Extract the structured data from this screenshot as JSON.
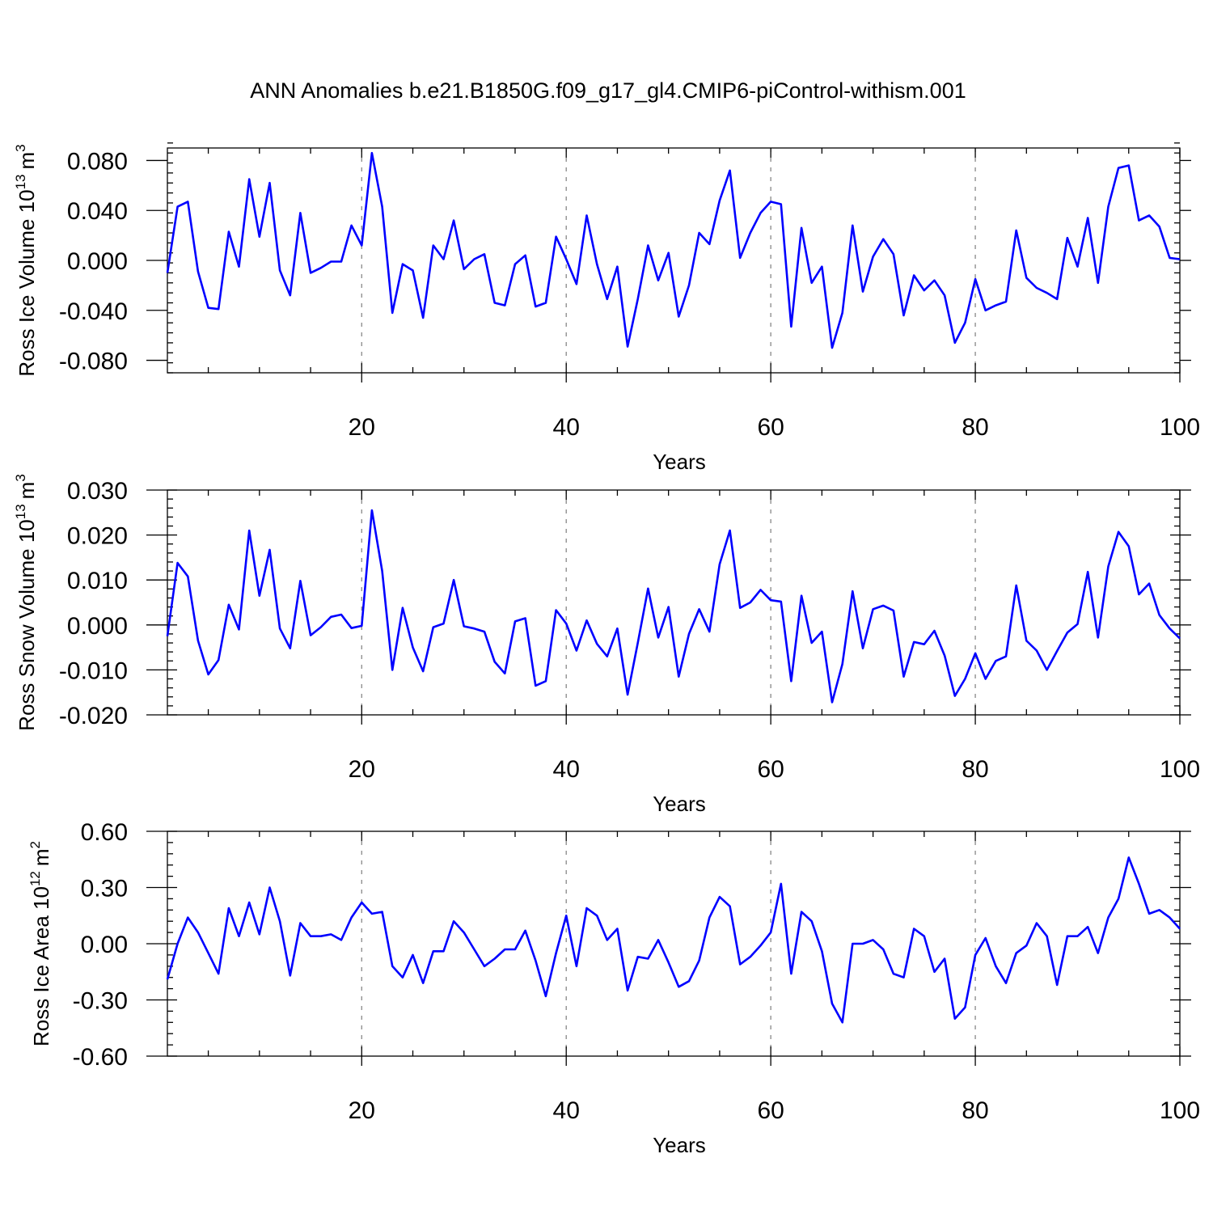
{
  "title": "ANN Anomalies b.e21.B1850G.f09_g17_gl4.CMIP6-piControl-withism.001",
  "line_color": "#0000ff",
  "chart_data": [
    {
      "type": "line",
      "title": "",
      "xlabel": "Years",
      "ylabel_main": "Ross Ice Volume 10",
      "ylabel_exp": "13",
      "ylabel_unit": "m",
      "ylabel_unit_exp": "3",
      "xlim": [
        1,
        100
      ],
      "ylim": [
        -0.09,
        0.09
      ],
      "xticks": [
        20,
        40,
        60,
        80,
        100
      ],
      "xtick_labels": [
        "20",
        "40",
        "60",
        "80",
        "100"
      ],
      "yticks": [
        0.08,
        0.04,
        0.0,
        -0.04,
        -0.08
      ],
      "ytick_labels": [
        "0.080",
        "0.040",
        "0.000",
        "-0.040",
        "-0.080"
      ],
      "grid": "dashed vertical at 20, 40, 60, 80",
      "series": [
        {
          "x": [
            1,
            2,
            3,
            4,
            5,
            6,
            7,
            8,
            9,
            10,
            11,
            12,
            13,
            14,
            15,
            16,
            17,
            18,
            19,
            20,
            21,
            22,
            23,
            24,
            25,
            26,
            27,
            28,
            29,
            30,
            31,
            32,
            33,
            34,
            35,
            36,
            37,
            38,
            39,
            40,
            41,
            42,
            43,
            44,
            45,
            46,
            47,
            48,
            49,
            50,
            51,
            52,
            53,
            54,
            55,
            56,
            57,
            58,
            59,
            60,
            61,
            62,
            63,
            64,
            65,
            66,
            67,
            68,
            69,
            70,
            71,
            72,
            73,
            74,
            75,
            76,
            77,
            78,
            79,
            80,
            81,
            82,
            83,
            84,
            85,
            86,
            87,
            88,
            89,
            90,
            91,
            92,
            93,
            94,
            95,
            96,
            97,
            98,
            99,
            100
          ],
          "y": [
            -0.01,
            0.043,
            0.047,
            -0.009,
            -0.038,
            -0.039,
            0.023,
            -0.005,
            0.065,
            0.019,
            0.062,
            -0.008,
            -0.028,
            0.038,
            -0.01,
            -0.006,
            -0.001,
            -0.001,
            0.028,
            0.012,
            0.086,
            0.043,
            -0.042,
            -0.003,
            -0.008,
            -0.046,
            0.012,
            0.001,
            0.032,
            -0.007,
            0.001,
            0.005,
            -0.034,
            -0.036,
            -0.003,
            0.004,
            -0.037,
            -0.034,
            0.019,
            0.001,
            -0.019,
            0.036,
            -0.003,
            -0.031,
            -0.005,
            -0.069,
            -0.031,
            0.012,
            -0.016,
            0.006,
            -0.045,
            -0.02,
            0.022,
            0.013,
            0.048,
            0.072,
            0.002,
            0.022,
            0.038,
            0.047,
            0.045,
            -0.053,
            0.026,
            -0.018,
            -0.005,
            -0.07,
            -0.042,
            0.028,
            -0.025,
            0.003,
            0.017,
            0.005,
            -0.044,
            -0.012,
            -0.024,
            -0.016,
            -0.028,
            -0.066,
            -0.05,
            -0.015,
            -0.04,
            -0.036,
            -0.033,
            0.024,
            -0.014,
            -0.022,
            -0.026,
            -0.031,
            0.018,
            -0.005,
            0.034,
            -0.018,
            0.043,
            0.074,
            0.076,
            0.032,
            0.036,
            0.027,
            0.002,
            0.001
          ]
        }
      ]
    },
    {
      "type": "line",
      "title": "",
      "xlabel": "Years",
      "ylabel_main": "Ross Snow Volume 10",
      "ylabel_exp": "13",
      "ylabel_unit": "m",
      "ylabel_unit_exp": "3",
      "xlim": [
        1,
        100
      ],
      "ylim": [
        -0.02,
        0.03
      ],
      "xticks": [
        20,
        40,
        60,
        80,
        100
      ],
      "xtick_labels": [
        "20",
        "40",
        "60",
        "80",
        "100"
      ],
      "yticks": [
        0.03,
        0.02,
        0.01,
        0.0,
        -0.01,
        -0.02
      ],
      "ytick_labels": [
        "0.030",
        "0.020",
        "0.010",
        "0.000",
        "-0.010",
        "-0.020"
      ],
      "grid": "dashed vertical at 20, 40, 60, 80",
      "series": [
        {
          "x": [
            1,
            2,
            3,
            4,
            5,
            6,
            7,
            8,
            9,
            10,
            11,
            12,
            13,
            14,
            15,
            16,
            17,
            18,
            19,
            20,
            21,
            22,
            23,
            24,
            25,
            26,
            27,
            28,
            29,
            30,
            31,
            32,
            33,
            34,
            35,
            36,
            37,
            38,
            39,
            40,
            41,
            42,
            43,
            44,
            45,
            46,
            47,
            48,
            49,
            50,
            51,
            52,
            53,
            54,
            55,
            56,
            57,
            58,
            59,
            60,
            61,
            62,
            63,
            64,
            65,
            66,
            67,
            68,
            69,
            70,
            71,
            72,
            73,
            74,
            75,
            76,
            77,
            78,
            79,
            80,
            81,
            82,
            83,
            84,
            85,
            86,
            87,
            88,
            89,
            90,
            91,
            92,
            93,
            94,
            95,
            96,
            97,
            98,
            99,
            100
          ],
          "y": [
            -0.0025,
            0.0138,
            0.0108,
            -0.0035,
            -0.011,
            -0.0078,
            0.0045,
            -0.001,
            0.021,
            0.0065,
            0.0167,
            -0.0008,
            -0.0052,
            0.0098,
            -0.0023,
            -0.0005,
            0.0018,
            0.0023,
            -0.0007,
            -0.0002,
            0.0255,
            0.012,
            -0.01,
            0.0038,
            -0.005,
            -0.0103,
            -0.0005,
            0.0003,
            0.01,
            -0.0003,
            -0.0008,
            -0.0015,
            -0.0082,
            -0.0108,
            0.0008,
            0.0015,
            -0.0135,
            -0.0125,
            0.0033,
            0.0003,
            -0.0057,
            0.001,
            -0.0042,
            -0.007,
            -0.0008,
            -0.0155,
            -0.004,
            0.0081,
            -0.0028,
            0.004,
            -0.0115,
            -0.002,
            0.0035,
            -0.0015,
            0.0135,
            0.021,
            0.0038,
            0.005,
            0.0078,
            0.0055,
            0.0052,
            -0.0125,
            0.0065,
            -0.004,
            -0.0015,
            -0.0172,
            -0.0087,
            0.0075,
            -0.0052,
            0.0035,
            0.0043,
            0.0032,
            -0.0115,
            -0.0038,
            -0.0043,
            -0.0013,
            -0.0068,
            -0.0158,
            -0.012,
            -0.0063,
            -0.012,
            -0.008,
            -0.007,
            0.0088,
            -0.0035,
            -0.0057,
            -0.01,
            -0.0058,
            -0.0017,
            0.0002,
            0.0118,
            -0.0028,
            0.013,
            0.0207,
            0.0175,
            0.0068,
            0.0092,
            0.0022,
            -0.0008,
            -0.003
          ]
        }
      ]
    },
    {
      "type": "line",
      "title": "",
      "xlabel": "Years",
      "ylabel_main": "Ross Ice Area 10",
      "ylabel_exp": "12",
      "ylabel_unit": "m",
      "ylabel_unit_exp": "2",
      "xlim": [
        1,
        100
      ],
      "ylim": [
        -0.6,
        0.6
      ],
      "xticks": [
        20,
        40,
        60,
        80,
        100
      ],
      "xtick_labels": [
        "20",
        "40",
        "60",
        "80",
        "100"
      ],
      "yticks": [
        0.6,
        0.3,
        0.0,
        -0.3,
        -0.6
      ],
      "ytick_labels": [
        "0.60",
        "0.30",
        "0.00",
        "-0.30",
        "-0.60"
      ],
      "grid": "dashed vertical at 20, 40, 60, 80",
      "series": [
        {
          "x": [
            1,
            2,
            3,
            4,
            5,
            6,
            7,
            8,
            9,
            10,
            11,
            12,
            13,
            14,
            15,
            16,
            17,
            18,
            19,
            20,
            21,
            22,
            23,
            24,
            25,
            26,
            27,
            28,
            29,
            30,
            31,
            32,
            33,
            34,
            35,
            36,
            37,
            38,
            39,
            40,
            41,
            42,
            43,
            44,
            45,
            46,
            47,
            48,
            49,
            50,
            51,
            52,
            53,
            54,
            55,
            56,
            57,
            58,
            59,
            60,
            61,
            62,
            63,
            64,
            65,
            66,
            67,
            68,
            69,
            70,
            71,
            72,
            73,
            74,
            75,
            76,
            77,
            78,
            79,
            80,
            81,
            82,
            83,
            84,
            85,
            86,
            87,
            88,
            89,
            90,
            91,
            92,
            93,
            94,
            95,
            96,
            97,
            98,
            99,
            100
          ],
          "y": [
            -0.19,
            0.0,
            0.14,
            0.06,
            -0.05,
            -0.16,
            0.19,
            0.04,
            0.22,
            0.05,
            0.3,
            0.12,
            -0.17,
            0.11,
            0.04,
            0.04,
            0.05,
            0.02,
            0.14,
            0.22,
            0.16,
            0.17,
            -0.12,
            -0.18,
            -0.06,
            -0.21,
            -0.04,
            -0.04,
            0.12,
            0.06,
            -0.03,
            -0.12,
            -0.08,
            -0.03,
            -0.03,
            0.07,
            -0.09,
            -0.28,
            -0.05,
            0.15,
            -0.12,
            0.19,
            0.15,
            0.02,
            0.08,
            -0.25,
            -0.07,
            -0.08,
            0.02,
            -0.1,
            -0.23,
            -0.2,
            -0.09,
            0.14,
            0.25,
            0.2,
            -0.11,
            -0.07,
            -0.01,
            0.06,
            0.32,
            -0.16,
            0.17,
            0.12,
            -0.04,
            -0.32,
            -0.42,
            0.0,
            0.0,
            0.02,
            -0.03,
            -0.16,
            -0.18,
            0.08,
            0.04,
            -0.15,
            -0.08,
            -0.4,
            -0.34,
            -0.06,
            0.03,
            -0.12,
            -0.21,
            -0.05,
            -0.01,
            0.11,
            0.04,
            -0.22,
            0.04,
            0.04,
            0.09,
            -0.05,
            0.14,
            0.24,
            0.46,
            0.32,
            0.16,
            0.18,
            0.14,
            0.08
          ]
        }
      ]
    }
  ]
}
